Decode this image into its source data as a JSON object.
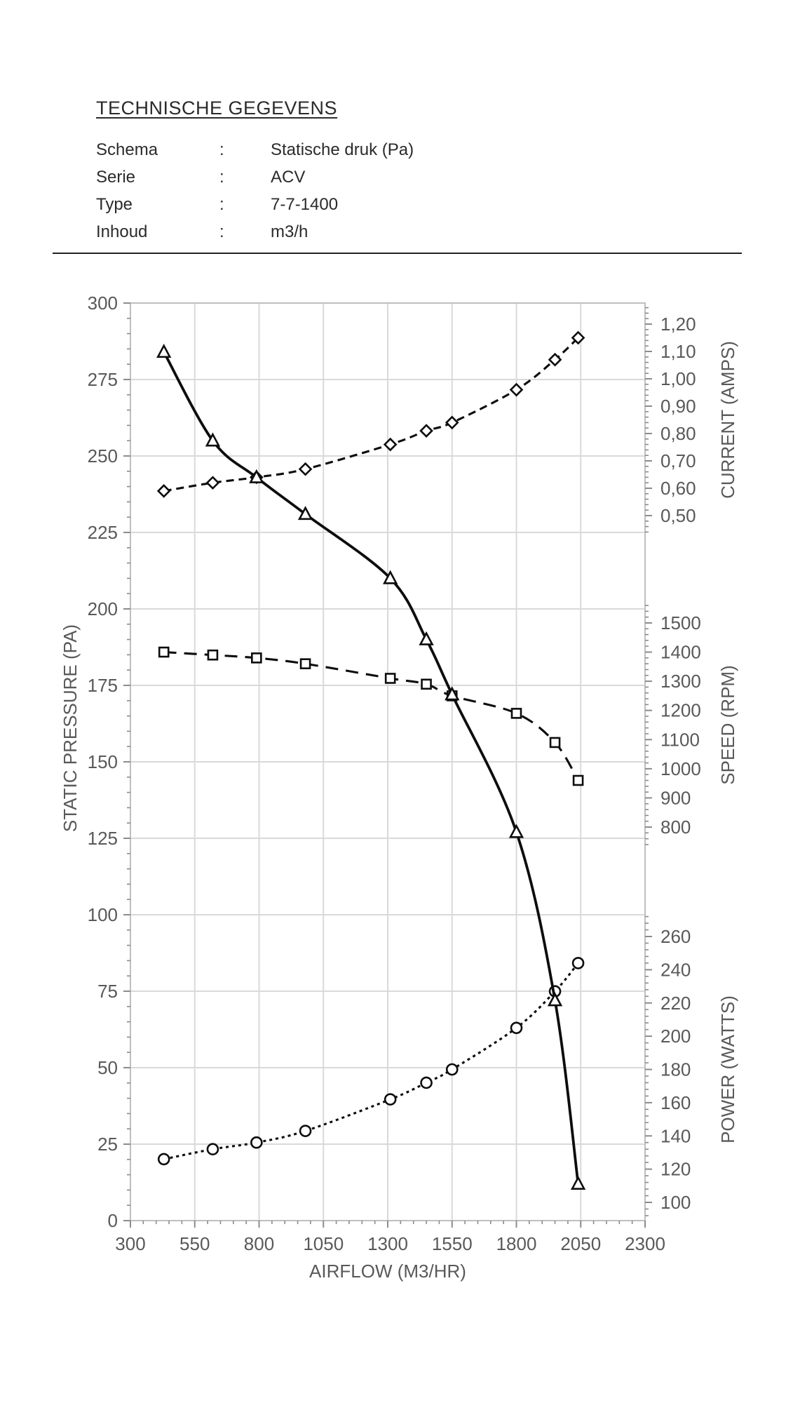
{
  "header": {
    "title": "TECHNISCHE GEGEVENS",
    "separator": ":",
    "rows": [
      {
        "label": "Schema",
        "value": "Statische druk (Pa)"
      },
      {
        "label": "Serie",
        "value": "ACV"
      },
      {
        "label": "Type",
        "value": "7-7-1400"
      },
      {
        "label": "Inhoud",
        "value": "m3/h"
      }
    ]
  },
  "chart_data": {
    "type": "line",
    "xlabel": "AIRFLOW (M3/HR)",
    "x": [
      430,
      620,
      790,
      980,
      1310,
      1450,
      1550,
      1800,
      1950,
      2040
    ],
    "x_axis": {
      "min": 300,
      "max": 2300,
      "minor_step": 50,
      "tick_values": [
        300,
        550,
        800,
        1050,
        1300,
        1550,
        1800,
        2050,
        2300
      ],
      "tick_labels": [
        "300",
        "550",
        "800",
        "1050",
        "1300",
        "1550",
        "1800",
        "2050",
        "2300"
      ]
    },
    "axes": {
      "pressure": {
        "title": "STATIC PRESSURE (PA)",
        "side": "left",
        "min": 0,
        "max": 300,
        "minor_step": 5,
        "tick_values": [
          300,
          275,
          250,
          225,
          200,
          175,
          150,
          125,
          100,
          75,
          50,
          25,
          0
        ],
        "tick_labels": [
          "300",
          "275",
          "250",
          "225",
          "200",
          "175",
          "150",
          "125",
          "100",
          "75",
          "50",
          "25",
          "0"
        ]
      },
      "current": {
        "title": "CURRENT (AMPS)",
        "side": "right",
        "min": 0.5,
        "max": 1.2,
        "minor_step": 0.02,
        "tick_values": [
          1.2,
          1.1,
          1.0,
          0.9,
          0.8,
          0.7,
          0.6,
          0.5
        ],
        "tick_labels": [
          "1,20",
          "1,10",
          "1,00",
          "0,90",
          "0,80",
          "0,70",
          "0,60",
          "0,50"
        ]
      },
      "speed": {
        "title": "SPEED (RPM)",
        "side": "right",
        "min": 800,
        "max": 1500,
        "minor_step": 20,
        "tick_values": [
          1500,
          1400,
          1300,
          1200,
          1100,
          1000,
          900,
          800
        ],
        "tick_labels": [
          "1500",
          "1400",
          "1300",
          "1200",
          "1100",
          "1000",
          "900",
          "800"
        ]
      },
      "power": {
        "title": "POWER (WATTS)",
        "side": "right",
        "min": 100,
        "max": 260,
        "minor_step": 4,
        "tick_values": [
          260,
          240,
          220,
          200,
          180,
          160,
          140,
          120,
          100
        ],
        "tick_labels": [
          "260",
          "240",
          "220",
          "200",
          "180",
          "160",
          "140",
          "120",
          "100"
        ]
      }
    },
    "series": [
      {
        "name": "Power",
        "axis": "power",
        "marker": "circle",
        "line": "dotted",
        "values": [
          126,
          132,
          136,
          143,
          162,
          172,
          180,
          205,
          227,
          244
        ]
      },
      {
        "name": "Speed",
        "axis": "speed",
        "marker": "square",
        "line": "longdash",
        "values": [
          1400,
          1390,
          1380,
          1360,
          1310,
          1290,
          1250,
          1190,
          1090,
          960
        ]
      },
      {
        "name": "Current",
        "axis": "current",
        "marker": "diamond",
        "line": "dashed",
        "values": [
          0.59,
          0.62,
          0.64,
          0.67,
          0.76,
          0.81,
          0.84,
          0.96,
          1.07,
          1.15
        ]
      },
      {
        "name": "Static pressure",
        "axis": "pressure",
        "marker": "triangle",
        "line": "solid",
        "values": [
          284,
          255,
          243,
          231,
          210,
          190,
          172,
          127,
          72,
          12
        ]
      }
    ],
    "colors": {
      "line": "#0d0d0d",
      "marker_fill": "#ffffff",
      "grid": "#d9d9d9",
      "border": "#bfbfbf",
      "tick": "#8c8c8c",
      "label": "#595959"
    },
    "grid": true,
    "legend": "none"
  }
}
